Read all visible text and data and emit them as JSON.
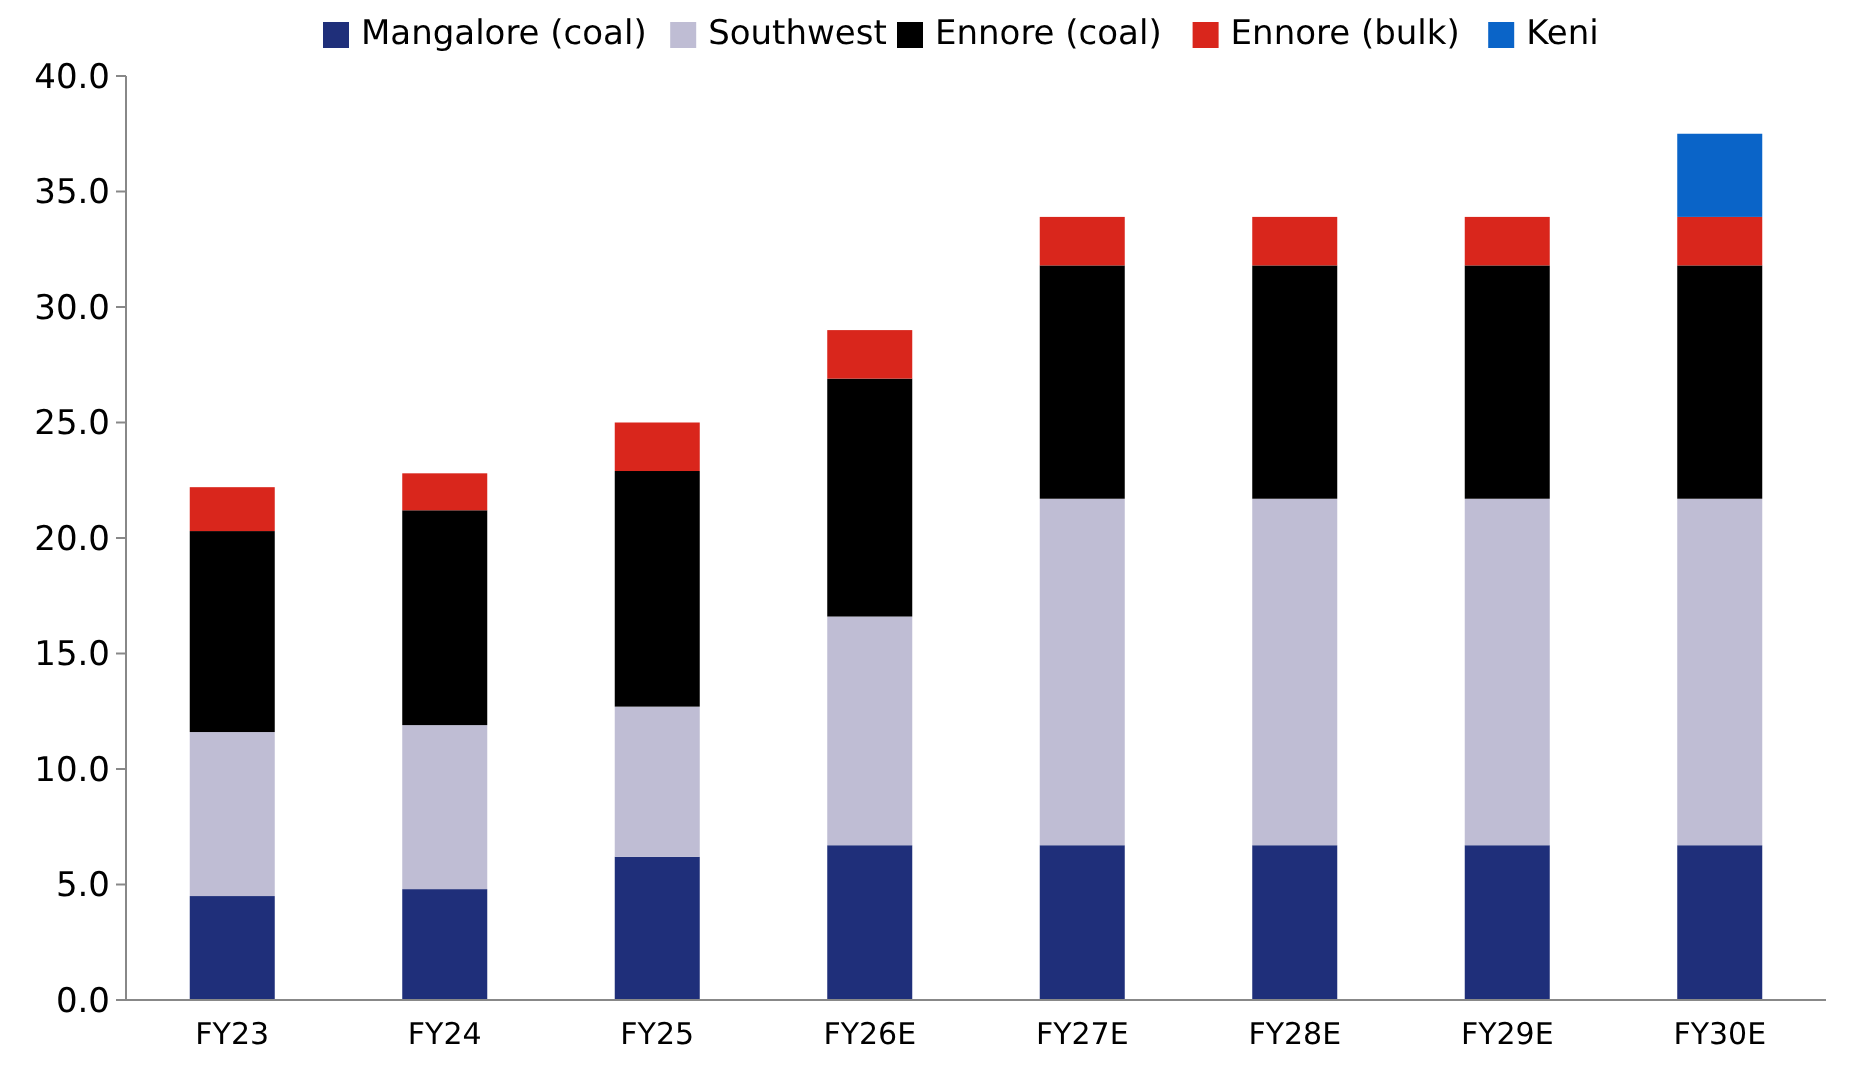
{
  "chart_data": {
    "type": "bar",
    "stacked": true,
    "legend": "top",
    "grid": false,
    "categories": [
      "FY23",
      "FY24",
      "FY25",
      "FY26E",
      "FY27E",
      "FY28E",
      "FY29E",
      "FY30E"
    ],
    "ylim": [
      0,
      40
    ],
    "yticks": [
      {
        "value": 0,
        "label": "0.0"
      },
      {
        "value": 5,
        "label": "5.0"
      },
      {
        "value": 10,
        "label": "10.0"
      },
      {
        "value": 15,
        "label": "15.0"
      },
      {
        "value": 20,
        "label": "20.0"
      },
      {
        "value": 25,
        "label": "25.0"
      },
      {
        "value": 30,
        "label": "30.0"
      },
      {
        "value": 35,
        "label": "35.0"
      },
      {
        "value": 40,
        "label": "40.0"
      }
    ],
    "series": [
      {
        "name": "Mangalore (coal)",
        "color": "#1f2f7a",
        "values": [
          4.5,
          4.8,
          6.2,
          6.7,
          6.7,
          6.7,
          6.7,
          6.7
        ]
      },
      {
        "name": "Southwest",
        "color": "#bfbdd4",
        "values": [
          7.1,
          7.1,
          6.5,
          9.9,
          15.0,
          15.0,
          15.0,
          15.0
        ]
      },
      {
        "name": "Ennore (coal)",
        "color": "#000000",
        "values": [
          8.7,
          9.3,
          10.2,
          10.3,
          10.1,
          10.1,
          10.1,
          10.1
        ]
      },
      {
        "name": "Ennore (bulk)",
        "color": "#d9261c",
        "values": [
          1.9,
          1.6,
          2.1,
          2.1,
          2.1,
          2.1,
          2.1,
          2.1
        ]
      },
      {
        "name": "Keni",
        "color": "#0a64c8",
        "values": [
          null,
          null,
          null,
          null,
          null,
          null,
          null,
          3.6
        ]
      }
    ]
  }
}
